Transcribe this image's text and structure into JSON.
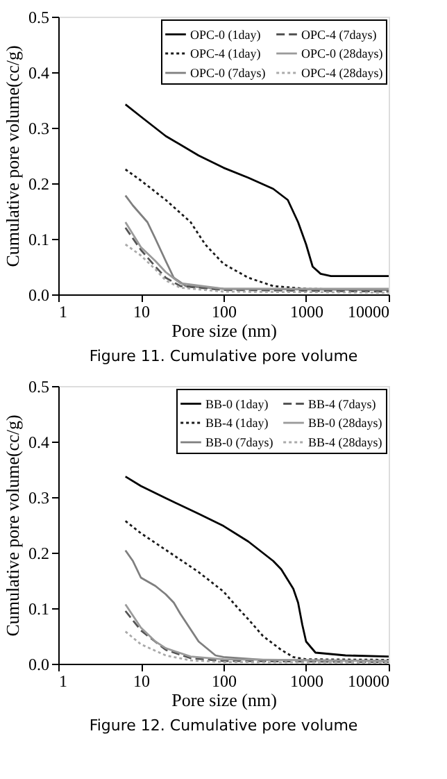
{
  "chart_data": [
    {
      "type": "line",
      "xlabel": "Pore size (nm)",
      "ylabel": "Cumulative pore volume(cc/g)",
      "annotations": [
        "Figure 11. Cumulative pore volume"
      ],
      "log": "x",
      "xlim": [
        1,
        10000
      ],
      "xticks": [
        1,
        10,
        100,
        1000,
        10000
      ],
      "ylim": [
        0,
        0.5
      ],
      "yticks": [
        {
          "value": 0,
          "label": "0.0"
        },
        0.1,
        0.2,
        0.3,
        0.4,
        0.5
      ],
      "grid": false,
      "legend": "top right",
      "marker": "none",
      "series": [
        {
          "name": "OPC-0 (1day)",
          "color": "#000000",
          "line_style": "solid",
          "x": [
            6.5,
            10,
            20,
            50,
            100,
            200,
            400,
            600,
            800,
            1000,
            1200,
            1500,
            2000,
            10000
          ],
          "values": [
            0.342,
            0.32,
            0.285,
            0.25,
            0.228,
            0.21,
            0.19,
            0.17,
            0.13,
            0.09,
            0.05,
            0.037,
            0.033,
            0.033
          ]
        },
        {
          "name": "OPC-4 (1day)",
          "color": "#1a1a1a",
          "line_style": "dotted",
          "x": [
            6.5,
            10,
            20,
            40,
            60,
            100,
            200,
            400,
            1000,
            10000
          ],
          "values": [
            0.225,
            0.205,
            0.17,
            0.13,
            0.09,
            0.055,
            0.03,
            0.015,
            0.01,
            0.008
          ]
        },
        {
          "name": "OPC-0 (7days)",
          "color": "#7f7f7f",
          "line_style": "solid",
          "x": [
            6.5,
            8,
            12,
            15,
            20,
            25,
            35,
            100,
            10000
          ],
          "values": [
            0.178,
            0.16,
            0.13,
            0.1,
            0.06,
            0.03,
            0.015,
            0.01,
            0.008
          ]
        },
        {
          "name": "OPC-4 (7days)",
          "color": "#555555",
          "line_style": "dashed",
          "x": [
            6.5,
            10,
            15,
            20,
            30,
            100,
            10000
          ],
          "values": [
            0.12,
            0.08,
            0.05,
            0.03,
            0.015,
            0.008,
            0.005
          ]
        },
        {
          "name": "OPC-0 (28days)",
          "color": "#9a9a9a",
          "line_style": "solid",
          "x": [
            6.5,
            10,
            15,
            20,
            30,
            100,
            10000
          ],
          "values": [
            0.13,
            0.085,
            0.06,
            0.04,
            0.02,
            0.01,
            0.01
          ]
        },
        {
          "name": "OPC-4 (28days)",
          "color": "#aaaaaa",
          "line_style": "dotted",
          "x": [
            6.5,
            10,
            15,
            20,
            30,
            100,
            10000
          ],
          "values": [
            0.09,
            0.07,
            0.045,
            0.025,
            0.012,
            0.005,
            0.003
          ]
        }
      ]
    },
    {
      "type": "line",
      "xlabel": "Pore size (nm)",
      "ylabel": "Cumulative pore volume(cc/g)",
      "annotations": [
        "Figure 12. Cumulative pore volume"
      ],
      "log": "x",
      "xlim": [
        1,
        10000
      ],
      "xticks": [
        1,
        10,
        100,
        1000,
        10000
      ],
      "ylim": [
        0,
        0.5
      ],
      "yticks": [
        {
          "value": 0,
          "label": "0.0"
        },
        0.1,
        0.2,
        0.3,
        0.4,
        0.5
      ],
      "grid": false,
      "legend": "top right",
      "marker": "none",
      "series": [
        {
          "name": "BB-0 (1day)",
          "color": "#000000",
          "line_style": "solid",
          "x": [
            6.5,
            10,
            20,
            50,
            100,
            200,
            400,
            500,
            700,
            800,
            900,
            1000,
            1300,
            3000,
            10000
          ],
          "values": [
            0.337,
            0.32,
            0.298,
            0.27,
            0.248,
            0.22,
            0.185,
            0.17,
            0.135,
            0.11,
            0.07,
            0.04,
            0.02,
            0.015,
            0.013
          ]
        },
        {
          "name": "BB-4 (1day)",
          "color": "#1a1a1a",
          "line_style": "dotted",
          "x": [
            6.5,
            10,
            20,
            50,
            100,
            150,
            200,
            300,
            500,
            700,
            1000,
            10000
          ],
          "values": [
            0.257,
            0.235,
            0.205,
            0.165,
            0.13,
            0.1,
            0.08,
            0.05,
            0.025,
            0.012,
            0.008,
            0.007
          ]
        },
        {
          "name": "BB-0 (7days)",
          "color": "#7f7f7f",
          "line_style": "solid",
          "x": [
            6.5,
            8,
            10,
            15,
            20,
            25,
            30,
            50,
            80,
            100,
            300,
            10000
          ],
          "values": [
            0.204,
            0.185,
            0.155,
            0.14,
            0.125,
            0.11,
            0.09,
            0.04,
            0.015,
            0.012,
            0.007,
            0.005
          ]
        },
        {
          "name": "BB-4 (7days)",
          "color": "#555555",
          "line_style": "dashed",
          "x": [
            6.5,
            10,
            20,
            40,
            100,
            10000
          ],
          "values": [
            0.095,
            0.06,
            0.025,
            0.01,
            0.005,
            0.003
          ]
        },
        {
          "name": "BB-0 (28days)",
          "color": "#9a9a9a",
          "line_style": "solid",
          "x": [
            6.5,
            10,
            15,
            20,
            40,
            100,
            10000
          ],
          "values": [
            0.107,
            0.065,
            0.04,
            0.028,
            0.013,
            0.008,
            0.005
          ]
        },
        {
          "name": "BB-4 (28days)",
          "color": "#aaaaaa",
          "line_style": "dotted",
          "x": [
            6.5,
            10,
            20,
            40,
            100,
            10000
          ],
          "values": [
            0.058,
            0.035,
            0.015,
            0.006,
            0.003,
            0.002
          ]
        }
      ]
    }
  ]
}
